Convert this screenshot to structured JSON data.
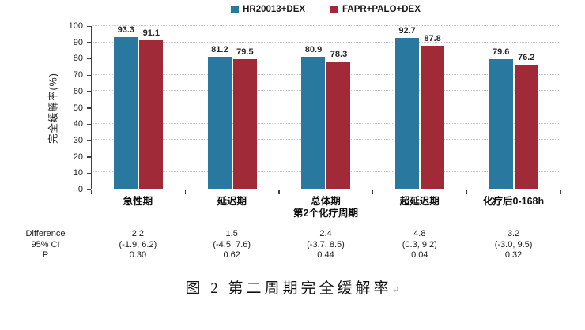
{
  "chart_data": {
    "type": "bar",
    "title": "图 2 第二周期完全缓解率",
    "caption_mark": "↵",
    "ylabel": "完全缓解率(%)",
    "ylim": [
      0,
      100
    ],
    "ytick_step": 10,
    "grid": "dotted horizontal",
    "legend_position": "top center",
    "categories": [
      [
        "急性期"
      ],
      [
        "延迟期"
      ],
      [
        "总体期",
        "第2个化疗周期"
      ],
      [
        "超延迟期"
      ],
      [
        "化疗后0-168h"
      ]
    ],
    "series": [
      {
        "name": "HR20013+DEX",
        "color": "#2878A0",
        "values": [
          93.3,
          81.2,
          80.9,
          92.7,
          79.6
        ]
      },
      {
        "name": "FAPR+PALO+DEX",
        "color": "#A02A38",
        "values": [
          91.1,
          79.5,
          78.3,
          87.8,
          76.2
        ]
      }
    ],
    "stats_rows": [
      {
        "label": "Difference",
        "values": [
          "2.2",
          "1.5",
          "2.4",
          "4.8",
          "3.2"
        ]
      },
      {
        "label": "95% CI",
        "values": [
          "(-1.9, 6.2)",
          "(-4.5, 7.6)",
          "(-3.7, 8.5)",
          "(0.3, 9.2)",
          "(-3.0, 9.5)"
        ]
      },
      {
        "label": "P",
        "values": [
          "0.30",
          "0.62",
          "0.44",
          "0.04",
          "0.32"
        ]
      }
    ]
  }
}
